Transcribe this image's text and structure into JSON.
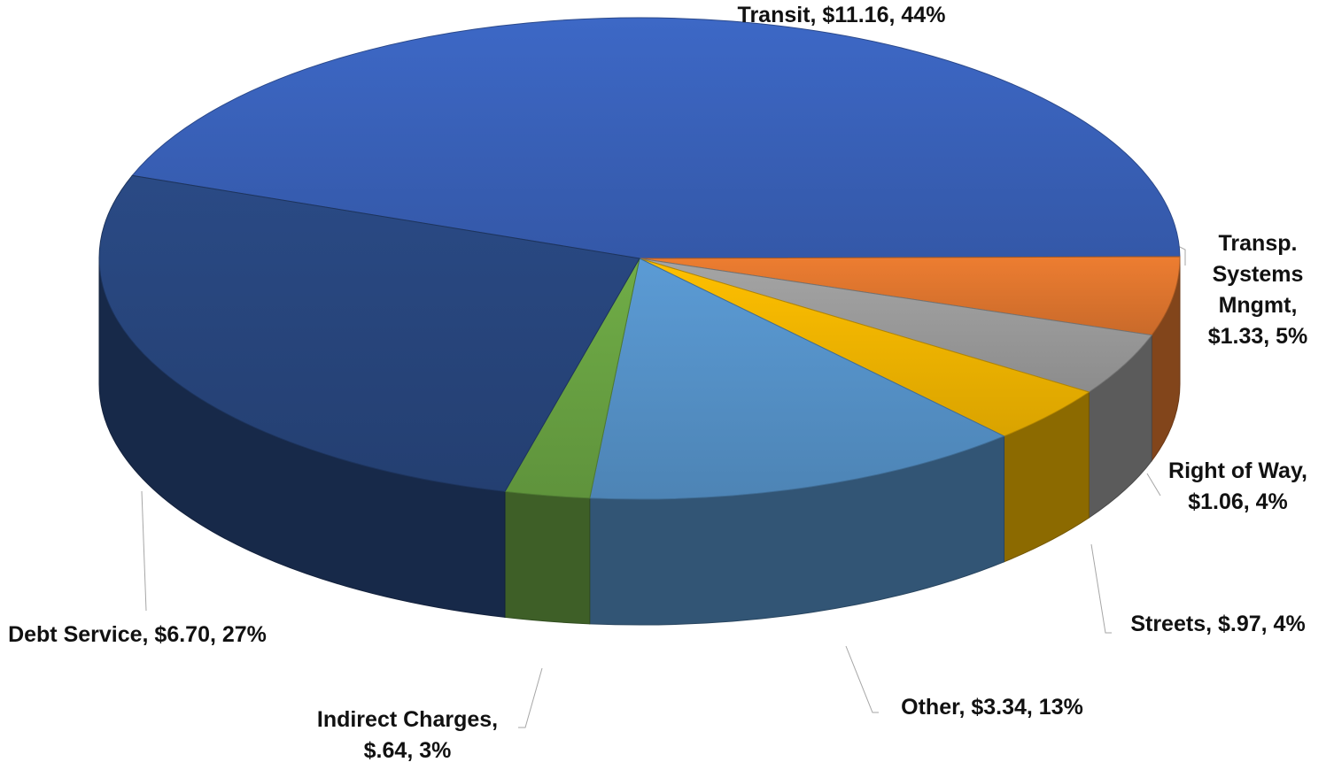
{
  "chart_data": {
    "type": "pie3d",
    "labels": [
      "Transit, $11.16, 44%",
      "Transp. Systems Mngmt, $1.33, 5%",
      "Right of Way, $1.06, 4%",
      "Streets, $.97, 4%",
      "Other, $3.34, 13%",
      "Indirect Charges, $.64, 3%",
      "Debt Service, $6.70, 27%"
    ],
    "values": [
      11.16,
      1.33,
      1.06,
      0.97,
      3.34,
      0.64,
      6.7
    ],
    "colors": [
      "#3d68c6",
      "#ed7d31",
      "#a5a5a5",
      "#ffc000",
      "#5b9bd5",
      "#70ad47",
      "#2a4a85"
    ]
  }
}
